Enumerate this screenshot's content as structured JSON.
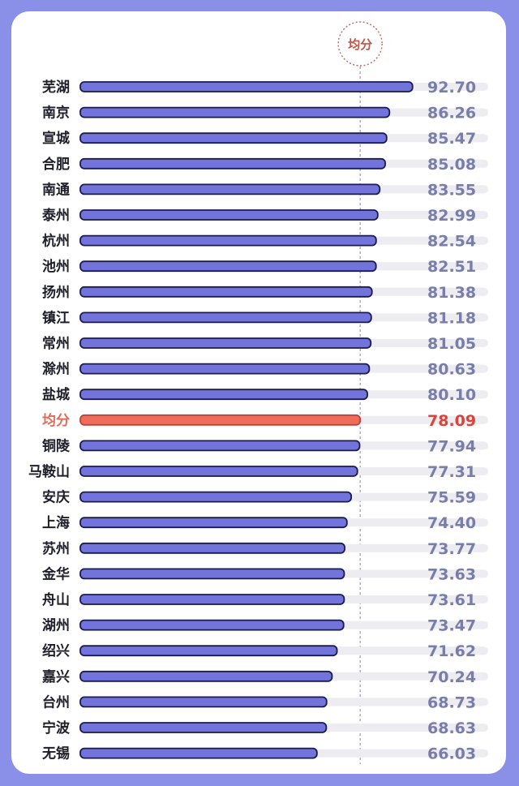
{
  "chart_data": {
    "type": "bar",
    "orientation": "horizontal",
    "average_label": "均分",
    "average_value": 78.09,
    "xlim": [
      0,
      100
    ],
    "grid": false,
    "colors": {
      "bar": "#7274dc",
      "bar_outline": "#1a1c4a",
      "avg_bar": "#ef6c5a",
      "track": "#ececf1",
      "marker_line": "#9a9ab0",
      "marker_circle": "#c26656"
    },
    "categories": [
      "芜湖",
      "南京",
      "宣城",
      "合肥",
      "南通",
      "泰州",
      "杭州",
      "池州",
      "扬州",
      "镇江",
      "常州",
      "滁州",
      "盐城",
      "均分",
      "铜陵",
      "马鞍山",
      "安庆",
      "上海",
      "苏州",
      "金华",
      "舟山",
      "湖州",
      "绍兴",
      "嘉兴",
      "台州",
      "宁波",
      "无锡"
    ],
    "values": [
      92.7,
      86.26,
      85.47,
      85.08,
      83.55,
      82.99,
      82.54,
      82.51,
      81.38,
      81.18,
      81.05,
      80.63,
      80.1,
      78.09,
      77.94,
      77.31,
      75.59,
      74.4,
      73.77,
      73.63,
      73.61,
      73.47,
      71.62,
      70.24,
      68.73,
      68.63,
      66.03
    ],
    "value_labels": [
      "92.70",
      "86.26",
      "85.47",
      "85.08",
      "83.55",
      "82.99",
      "82.54",
      "82.51",
      "81.38",
      "81.18",
      "81.05",
      "80.63",
      "80.10",
      "78.09",
      "77.94",
      "77.31",
      "75.59",
      "74.40",
      "73.77",
      "73.63",
      "73.61",
      "73.47",
      "71.62",
      "70.24",
      "68.73",
      "68.63",
      "66.03"
    ]
  }
}
